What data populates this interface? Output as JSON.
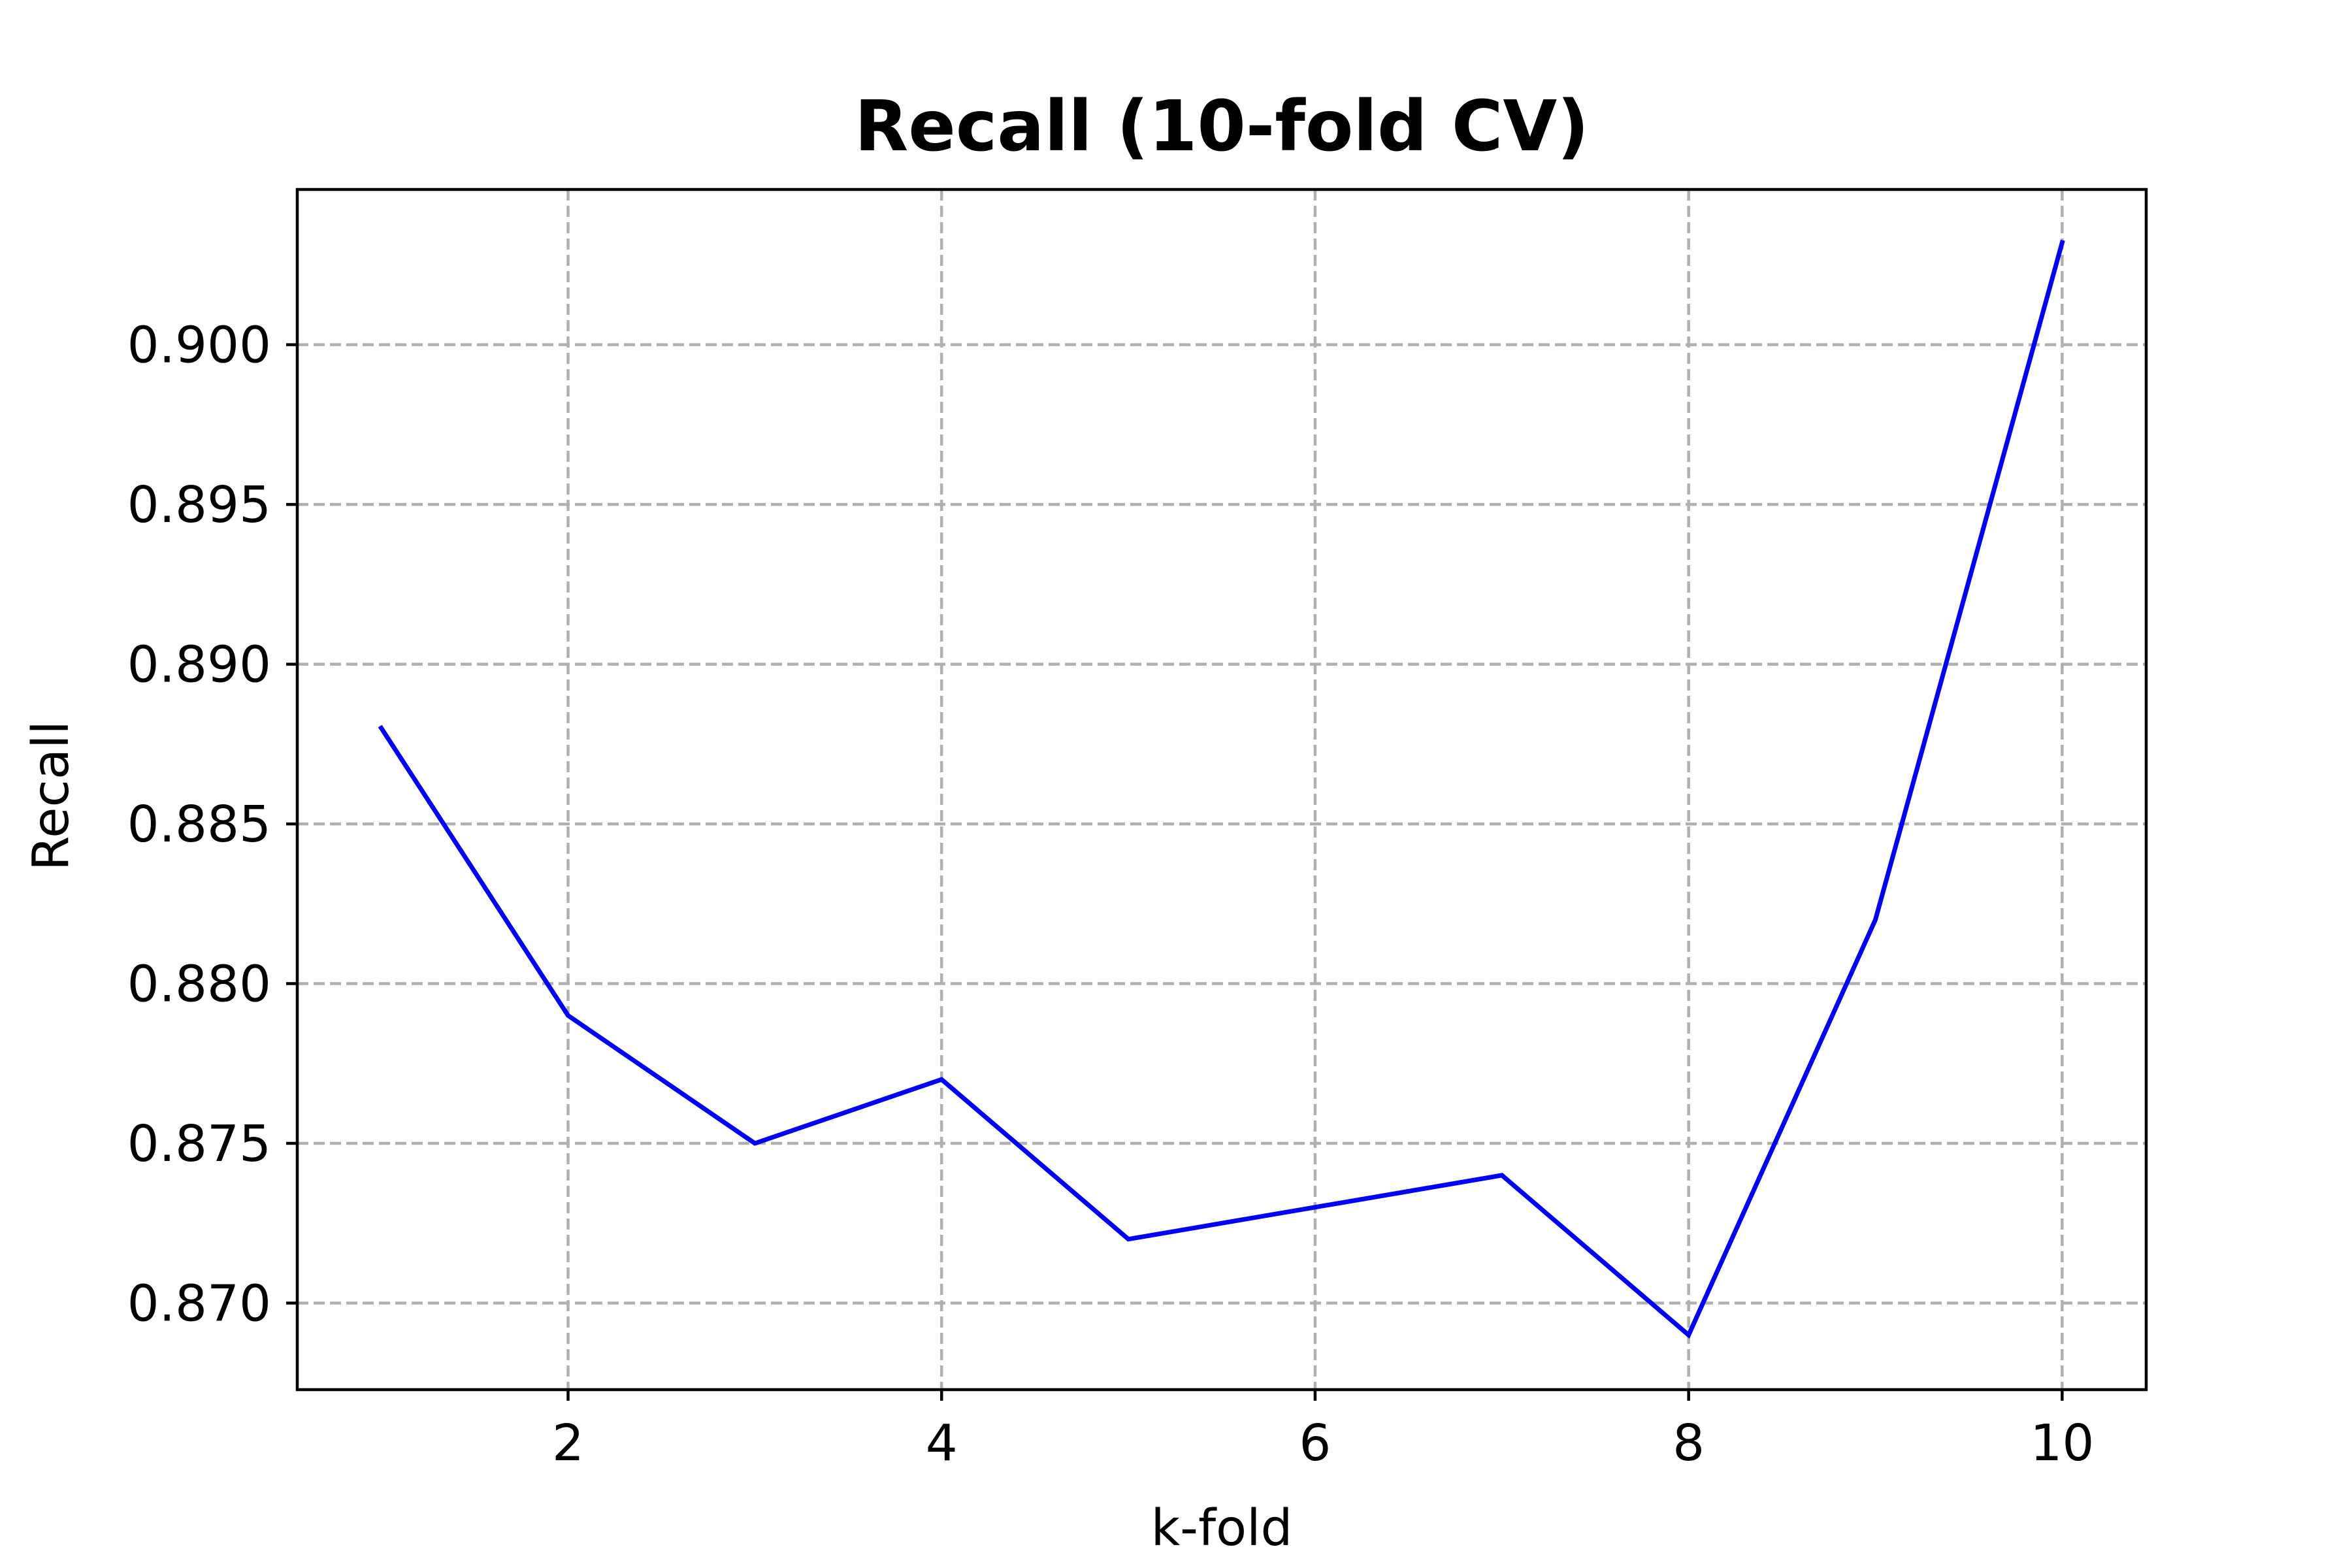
{
  "chart_data": {
    "type": "line",
    "title": "Recall (10-fold CV)",
    "xlabel": "k-fold",
    "ylabel": "Recall",
    "x": [
      1,
      2,
      3,
      4,
      5,
      6,
      7,
      8,
      9,
      10
    ],
    "series": [
      {
        "values": [
          0.888,
          0.879,
          0.875,
          0.877,
          0.872,
          0.873,
          0.874,
          0.869,
          0.882,
          0.9032
        ],
        "color": "#0000ff"
      }
    ],
    "xlim": [
      0.55,
      10.45
    ],
    "ylim": [
      0.86729,
      0.90486
    ],
    "xticks": [
      2,
      4,
      6,
      8,
      10
    ],
    "xtick_labels": [
      "2",
      "4",
      "6",
      "8",
      "10"
    ],
    "yticks": [
      0.87,
      0.875,
      0.88,
      0.885,
      0.89,
      0.895,
      0.9
    ],
    "ytick_labels": [
      "0.870",
      "0.875",
      "0.880",
      "0.885",
      "0.890",
      "0.895",
      "0.900"
    ],
    "grid": true,
    "grid_style": "dashed"
  }
}
